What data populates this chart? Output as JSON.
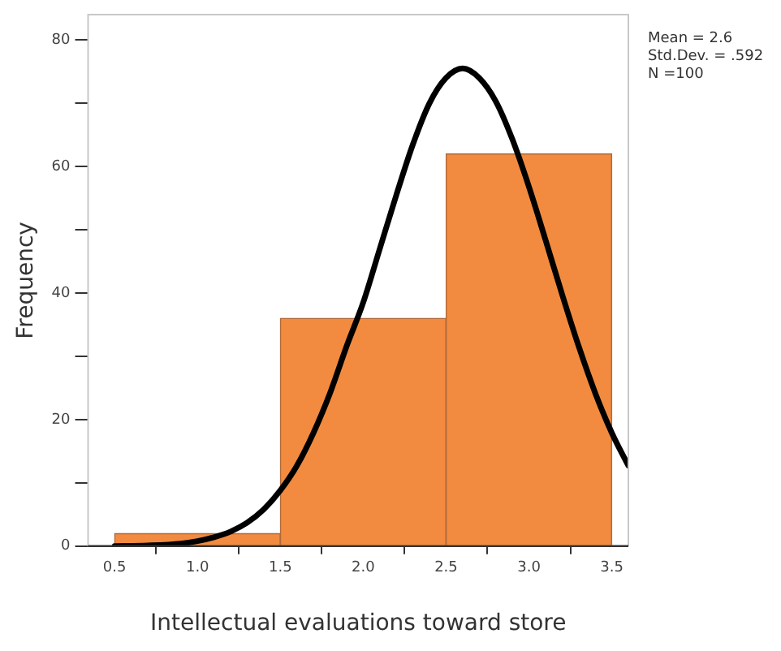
{
  "chart_data": {
    "type": "histogram",
    "xlabel": "Intellectual evaluations toward store",
    "ylabel": "Frequency",
    "bins": [
      0.5,
      1.5,
      2.5,
      3.5
    ],
    "values": [
      2,
      36,
      62
    ],
    "color": "#f28b3f",
    "series": [
      {
        "type": "line",
        "color": "#000000",
        "x": [
          0.5,
          0.7,
          0.9,
          1.0,
          1.1,
          1.2,
          1.3,
          1.4,
          1.5,
          1.6,
          1.7,
          1.8,
          1.9,
          2.0,
          2.1,
          2.2,
          2.3,
          2.4,
          2.5,
          2.6,
          2.7,
          2.8,
          2.9,
          3.0,
          3.1,
          3.2,
          3.3,
          3.4,
          3.5,
          3.6
        ],
        "values": [
          0,
          0.1,
          0.4,
          0.8,
          1.4,
          2.3,
          3.7,
          5.8,
          8.8,
          12.7,
          17.9,
          24.2,
          31.6,
          38.5,
          47,
          55.5,
          63.5,
          70,
          74,
          75.5,
          74,
          70.3,
          64.3,
          56.8,
          48.4,
          39.8,
          31.6,
          24.2,
          17.9,
          12.7
        ]
      }
    ],
    "xlim": [
      0.34,
      3.6
    ],
    "xticks": [
      0.5,
      {
        "value": 1,
        "label": "1.0"
      },
      1.5,
      {
        "value": 2,
        "label": "2.0"
      },
      2.5,
      {
        "value": 3,
        "label": "3.0"
      },
      3.5
    ],
    "ylim": [
      0,
      84
    ],
    "yticks": [
      0,
      {
        "value": 10,
        "label": null
      },
      20,
      {
        "value": 30,
        "label": null
      },
      40,
      {
        "value": 50,
        "label": null
      },
      60,
      {
        "value": 70,
        "label": null
      },
      80
    ],
    "annotations": [
      "Mean = 2.6",
      "Std.Dev. = .592",
      "N =100"
    ],
    "grid": false,
    "legend": false,
    "marker": "none",
    "line_style": "solid"
  }
}
